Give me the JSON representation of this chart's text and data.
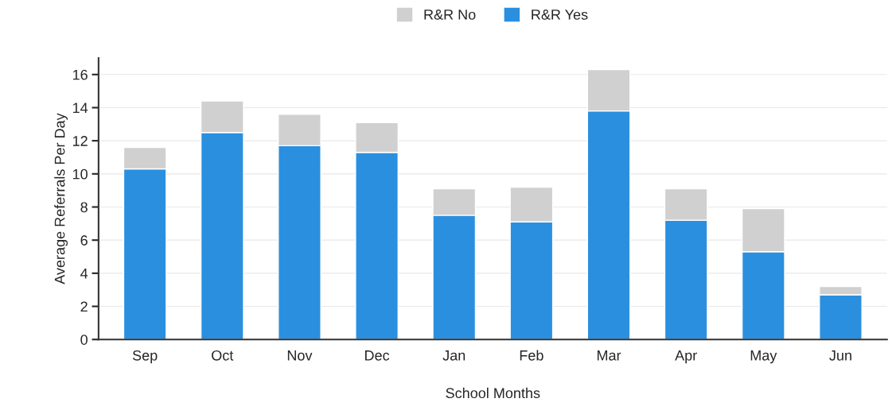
{
  "chart_data": {
    "type": "bar",
    "stacked": true,
    "xlabel": "School Months",
    "ylabel": "Average Referrals Per Day",
    "categories": [
      "Sep",
      "Oct",
      "Nov",
      "Dec",
      "Jan",
      "Feb",
      "Mar",
      "Apr",
      "May",
      "Jun"
    ],
    "series": [
      {
        "name": "R&R Yes",
        "color": "#2b8fdf",
        "values": [
          10.3,
          12.5,
          11.7,
          11.3,
          7.5,
          7.1,
          13.8,
          7.2,
          5.3,
          2.7
        ]
      },
      {
        "name": "R&R No",
        "color": "#d0d0d0",
        "values": [
          1.3,
          1.9,
          1.9,
          1.8,
          1.6,
          2.1,
          2.5,
          1.9,
          2.6,
          0.5
        ]
      }
    ],
    "ylim": [
      0,
      17
    ],
    "yticks": [
      0,
      2,
      4,
      6,
      8,
      10,
      12,
      14,
      16
    ],
    "grid": "y",
    "legend": "top"
  }
}
